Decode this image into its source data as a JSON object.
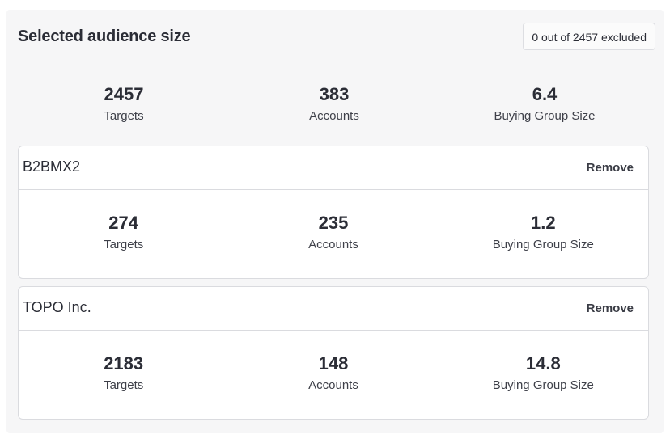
{
  "header": {
    "title": "Selected audience size",
    "excluded_badge": "0 out of 2457 excluded"
  },
  "summary": {
    "stats": [
      {
        "value": "2457",
        "label": "Targets"
      },
      {
        "value": "383",
        "label": "Accounts"
      },
      {
        "value": "6.4",
        "label": "Buying Group Size"
      }
    ]
  },
  "groups": [
    {
      "name": "B2BMX2",
      "remove_label": "Remove",
      "stats": [
        {
          "value": "274",
          "label": "Targets"
        },
        {
          "value": "235",
          "label": "Accounts"
        },
        {
          "value": "1.2",
          "label": "Buying Group Size"
        }
      ]
    },
    {
      "name": "TOPO Inc.",
      "remove_label": "Remove",
      "stats": [
        {
          "value": "2183",
          "label": "Targets"
        },
        {
          "value": "148",
          "label": "Accounts"
        },
        {
          "value": "14.8",
          "label": "Buying Group Size"
        }
      ]
    }
  ]
}
